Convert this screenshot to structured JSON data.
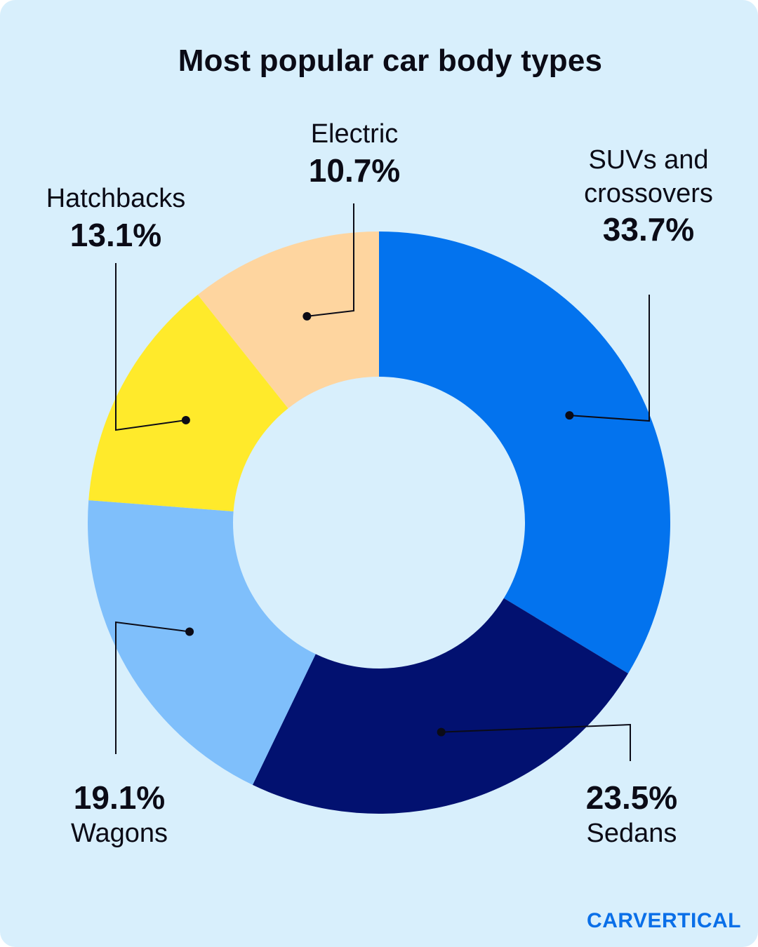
{
  "title": "Most popular car body types",
  "brand": "CARVERTICAL",
  "chart_data": {
    "type": "donut",
    "title": "Most popular car body types",
    "unit": "%",
    "slices": [
      {
        "name": "SUVs and crossovers",
        "name_line1": "SUVs and",
        "name_line2": "crossovers",
        "value": 33.7,
        "pct_label": "33.7%",
        "color": "#0373ee"
      },
      {
        "name": "Sedans",
        "value": 23.5,
        "pct_label": "23.5%",
        "color": "#021170"
      },
      {
        "name": "Wagons",
        "value": 19.1,
        "pct_label": "19.1%",
        "color": "#7fbffb"
      },
      {
        "name": "Hatchbacks",
        "value": 13.1,
        "pct_label": "13.1%",
        "color": "#ffea2b"
      },
      {
        "name": "Electric",
        "value": 10.7,
        "pct_label": "10.7%",
        "color": "#fed59f"
      }
    ]
  }
}
